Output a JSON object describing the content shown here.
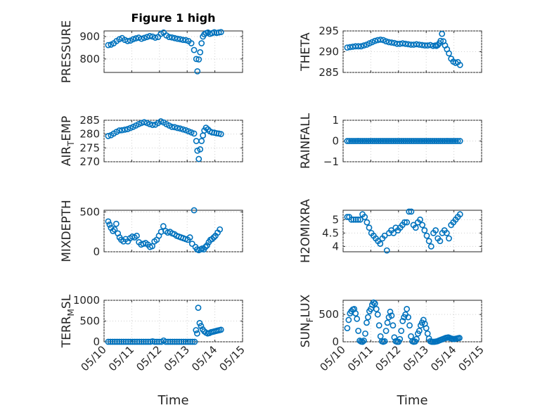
{
  "figure": {
    "title": "Figure 1 high",
    "marker_color": "#0072bd",
    "axis_color": "#262626"
  },
  "chart_data": [
    {
      "type": "scatter",
      "panel": "PRESSURE",
      "ylabel": "PRESSURE",
      "title": "Figure 1 high",
      "ylim": [
        740,
        925
      ],
      "yticks": [
        800,
        900
      ],
      "xlim": [
        0,
        5
      ],
      "xticks": [],
      "xticklabels": [],
      "xlabel": "",
      "grid": true,
      "x": [
        0.15,
        0.25,
        0.35,
        0.45,
        0.55,
        0.65,
        0.75,
        0.85,
        0.95,
        1.05,
        1.15,
        1.25,
        1.35,
        1.45,
        1.55,
        1.65,
        1.75,
        1.85,
        1.95,
        2.05,
        2.15,
        2.25,
        2.35,
        2.45,
        2.55,
        2.65,
        2.75,
        2.85,
        2.95,
        3.05,
        3.15,
        3.25,
        3.33,
        3.37,
        3.42,
        3.47,
        3.52,
        3.57,
        3.62,
        3.68,
        3.75,
        3.82,
        3.9,
        3.98,
        4.06,
        4.14,
        4.22
      ],
      "y": [
        862,
        864,
        870,
        880,
        888,
        893,
        885,
        880,
        882,
        888,
        892,
        895,
        890,
        894,
        898,
        902,
        900,
        895,
        898,
        912,
        918,
        905,
        898,
        896,
        893,
        890,
        888,
        885,
        884,
        880,
        870,
        840,
        800,
        745,
        798,
        830,
        870,
        900,
        910,
        915,
        918,
        912,
        915,
        919,
        916,
        918,
        920
      ]
    },
    {
      "type": "scatter",
      "panel": "THETA",
      "ylabel": "THETA",
      "ylim": [
        285,
        295
      ],
      "yticks": [
        285,
        290,
        295
      ],
      "xlim": [
        0,
        5
      ],
      "xticks": [],
      "xticklabels": [],
      "xlabel": "",
      "grid": true,
      "x": [
        0.15,
        0.25,
        0.35,
        0.45,
        0.55,
        0.65,
        0.75,
        0.85,
        0.95,
        1.05,
        1.15,
        1.25,
        1.35,
        1.45,
        1.55,
        1.65,
        1.75,
        1.85,
        1.95,
        2.05,
        2.15,
        2.25,
        2.35,
        2.45,
        2.55,
        2.65,
        2.75,
        2.85,
        2.95,
        3.05,
        3.15,
        3.25,
        3.33,
        3.37,
        3.42,
        3.47,
        3.52,
        3.57,
        3.62,
        3.68,
        3.75,
        3.82,
        3.9,
        3.98,
        4.06,
        4.14,
        4.22
      ],
      "y": [
        291,
        291.1,
        291.2,
        291.3,
        291.3,
        291.3,
        291.5,
        291.7,
        292,
        292.3,
        292.6,
        292.8,
        292.9,
        292.8,
        292.5,
        292.3,
        292.2,
        292.1,
        291.9,
        291.9,
        292,
        291.9,
        291.8,
        291.7,
        291.7,
        291.8,
        291.7,
        291.6,
        291.5,
        291.5,
        291.6,
        291.4,
        291.5,
        291.4,
        291.6,
        292.0,
        292.6,
        294.3,
        292.5,
        291.5,
        290.6,
        289.6,
        288.3,
        287.6,
        287.3,
        287.5,
        286.8
      ]
    },
    {
      "type": "scatter",
      "panel": "AIR_TEMP",
      "ylabel": "AIR",
      "ylabel_sub": "T",
      "ylabel_rest": "EMP",
      "ylim": [
        270,
        285
      ],
      "yticks": [
        270,
        275,
        280,
        285
      ],
      "xlim": [
        0,
        5
      ],
      "xticks": [],
      "xticklabels": [],
      "xlabel": "",
      "grid": true,
      "x": [
        0.15,
        0.25,
        0.35,
        0.45,
        0.55,
        0.65,
        0.75,
        0.85,
        0.95,
        1.05,
        1.15,
        1.25,
        1.35,
        1.45,
        1.55,
        1.65,
        1.75,
        1.85,
        1.95,
        2.05,
        2.15,
        2.25,
        2.35,
        2.45,
        2.55,
        2.65,
        2.75,
        2.85,
        2.95,
        3.05,
        3.15,
        3.25,
        3.33,
        3.37,
        3.42,
        3.47,
        3.52,
        3.57,
        3.62,
        3.68,
        3.75,
        3.82,
        3.9,
        3.98,
        4.06,
        4.14,
        4.22
      ],
      "y": [
        279.3,
        279.6,
        280.2,
        280.8,
        281.3,
        281.4,
        281.6,
        281.8,
        282.2,
        282.6,
        283.1,
        283.6,
        284.0,
        284.3,
        284.0,
        283.6,
        283.3,
        283.4,
        284.0,
        284.6,
        284.2,
        283.6,
        283.1,
        282.6,
        282.5,
        282.2,
        282.0,
        281.7,
        281.4,
        281.0,
        280.6,
        280.2,
        277.5,
        274,
        271,
        274.5,
        277.5,
        279.5,
        281.3,
        282.3,
        281.7,
        281.0,
        280.6,
        280.5,
        280.3,
        280.2,
        280.0
      ]
    },
    {
      "type": "scatter",
      "panel": "RAINFALL",
      "ylabel": "RAINFALL",
      "ylim": [
        -1,
        1
      ],
      "yticks": [
        -1,
        0,
        1
      ],
      "xlim": [
        0,
        5
      ],
      "xticks": [],
      "xticklabels": [],
      "xlabel": "",
      "grid": true,
      "x": [
        0.15,
        0.22,
        0.29,
        0.36,
        0.43,
        0.5,
        0.57,
        0.64,
        0.71,
        0.78,
        0.85,
        0.92,
        0.99,
        1.06,
        1.13,
        1.2,
        1.27,
        1.34,
        1.41,
        1.48,
        1.55,
        1.62,
        1.69,
        1.76,
        1.83,
        1.9,
        1.97,
        2.04,
        2.11,
        2.18,
        2.25,
        2.32,
        2.39,
        2.46,
        2.53,
        2.6,
        2.67,
        2.74,
        2.81,
        2.88,
        2.95,
        3.02,
        3.09,
        3.16,
        3.23,
        3.3,
        3.37,
        3.44,
        3.51,
        3.58,
        3.65,
        3.72,
        3.79,
        3.86,
        3.93,
        4.0,
        4.07,
        4.14,
        4.22
      ],
      "y": [
        0,
        0,
        0,
        0,
        0,
        0,
        0,
        0,
        0,
        0,
        0,
        0,
        0,
        0,
        0,
        0,
        0,
        0,
        0,
        0,
        0,
        0,
        0,
        0,
        0,
        0,
        0,
        0,
        0,
        0,
        0,
        0,
        0,
        0,
        0,
        0,
        0,
        0,
        0,
        0,
        0,
        0,
        0,
        0,
        0,
        0,
        0,
        0,
        0,
        0,
        0,
        0,
        0,
        0,
        0,
        0,
        0,
        0,
        0
      ]
    },
    {
      "type": "scatter",
      "panel": "MIXDEPTH",
      "ylabel": "MIXDEPTH",
      "ylim": [
        0,
        520
      ],
      "yticks": [
        0,
        500
      ],
      "xlim": [
        0,
        5
      ],
      "xticks": [],
      "xticklabels": [],
      "xlabel": "",
      "grid": true,
      "x": [
        0.15,
        0.2,
        0.25,
        0.32,
        0.38,
        0.44,
        0.5,
        0.56,
        0.62,
        0.7,
        0.78,
        0.86,
        0.94,
        1.02,
        1.1,
        1.18,
        1.26,
        1.34,
        1.42,
        1.5,
        1.58,
        1.66,
        1.74,
        1.82,
        1.9,
        1.98,
        2.06,
        2.14,
        2.22,
        2.3,
        2.38,
        2.46,
        2.54,
        2.62,
        2.7,
        2.78,
        2.86,
        2.94,
        3.02,
        3.1,
        3.18,
        3.25,
        3.3,
        3.36,
        3.42,
        3.48,
        3.54,
        3.6,
        3.66,
        3.72,
        3.78,
        3.84,
        3.9,
        3.96,
        4.02,
        4.1,
        4.18
      ],
      "y": [
        380,
        340,
        300,
        260,
        280,
        350,
        230,
        180,
        150,
        130,
        160,
        130,
        170,
        190,
        180,
        200,
        120,
        90,
        100,
        110,
        90,
        60,
        70,
        130,
        150,
        200,
        250,
        320,
        260,
        240,
        250,
        230,
        220,
        200,
        190,
        180,
        170,
        160,
        150,
        180,
        100,
        520,
        60,
        30,
        20,
        30,
        40,
        30,
        60,
        80,
        120,
        150,
        160,
        180,
        200,
        240,
        280
      ]
    },
    {
      "type": "scatter",
      "panel": "H2OMIXRA",
      "ylabel": "H2OMIXRA",
      "ylim": [
        3.8,
        5.35
      ],
      "yticks": [
        4,
        4.5,
        5
      ],
      "xlim": [
        0,
        5
      ],
      "xticks": [],
      "xticklabels": [],
      "xlabel": "",
      "grid": true,
      "x": [
        0.15,
        0.22,
        0.3,
        0.38,
        0.46,
        0.54,
        0.62,
        0.7,
        0.78,
        0.86,
        0.94,
        1.02,
        1.1,
        1.18,
        1.26,
        1.34,
        1.42,
        1.5,
        1.58,
        1.66,
        1.74,
        1.82,
        1.9,
        1.98,
        2.06,
        2.14,
        2.22,
        2.3,
        2.38,
        2.46,
        2.54,
        2.62,
        2.7,
        2.78,
        2.86,
        2.94,
        3.02,
        3.1,
        3.18,
        3.26,
        3.34,
        3.42,
        3.5,
        3.58,
        3.66,
        3.74,
        3.82,
        3.9,
        3.98,
        4.06,
        4.14,
        4.22
      ],
      "y": [
        5.1,
        5.1,
        5.0,
        5.0,
        5.0,
        5.0,
        5.0,
        5.2,
        5.1,
        4.9,
        4.7,
        4.5,
        4.4,
        4.3,
        4.2,
        4.1,
        4.3,
        4.4,
        3.85,
        4.5,
        4.6,
        4.5,
        4.7,
        4.6,
        4.7,
        4.8,
        4.9,
        4.9,
        5.3,
        5.3,
        4.8,
        4.7,
        4.9,
        5.0,
        4.8,
        4.6,
        4.4,
        4.2,
        4.0,
        4.5,
        4.6,
        4.3,
        4.2,
        4.5,
        4.6,
        4.5,
        4.3,
        4.8,
        4.9,
        5.0,
        5.1,
        5.2
      ]
    },
    {
      "type": "scatter",
      "panel": "TERR_MSL",
      "ylabel": "TERR",
      "ylabel_sub": "M",
      "ylabel_rest": "SL",
      "ylim": [
        0,
        1000
      ],
      "yticks": [
        0,
        500,
        1000
      ],
      "xlim": [
        0,
        5
      ],
      "xticks": [
        0,
        1,
        2,
        3,
        4,
        5
      ],
      "xticklabels": [
        "05/10",
        "05/11",
        "05/12",
        "05/13",
        "05/14",
        "05/15"
      ],
      "xlabel": "Time",
      "grid": true,
      "x": [
        0.15,
        0.23,
        0.31,
        0.39,
        0.47,
        0.55,
        0.63,
        0.71,
        0.79,
        0.87,
        0.95,
        1.03,
        1.11,
        1.19,
        1.27,
        1.35,
        1.43,
        1.51,
        1.59,
        1.67,
        1.75,
        1.83,
        1.91,
        1.99,
        2.07,
        2.15,
        2.23,
        2.31,
        2.39,
        2.47,
        2.55,
        2.63,
        2.71,
        2.79,
        2.87,
        2.95,
        3.03,
        3.11,
        3.19,
        3.27,
        3.32,
        3.36,
        3.4,
        3.45,
        3.5,
        3.56,
        3.62,
        3.68,
        3.74,
        3.8,
        3.86,
        3.92,
        3.98,
        4.04,
        4.1,
        4.16,
        4.22
      ],
      "y": [
        0,
        0,
        0,
        0,
        0,
        0,
        0,
        0,
        0,
        0,
        0,
        0,
        0,
        0,
        0,
        0,
        0,
        0,
        0,
        0,
        10,
        0,
        0,
        0,
        0,
        30,
        0,
        0,
        0,
        0,
        0,
        0,
        0,
        0,
        0,
        0,
        0,
        0,
        0,
        0,
        280,
        200,
        820,
        450,
        380,
        300,
        250,
        220,
        200,
        210,
        230,
        240,
        250,
        260,
        270,
        280,
        290
      ]
    },
    {
      "type": "scatter",
      "panel": "SUN_FLUX",
      "ylabel": "SUN",
      "ylabel_sub": "F",
      "ylabel_rest": "LUX",
      "ylim": [
        0,
        760
      ],
      "yticks": [
        0,
        500
      ],
      "xlim": [
        0,
        5
      ],
      "xticks": [
        0,
        1,
        2,
        3,
        4,
        5
      ],
      "xticklabels": [
        "05/10",
        "05/11",
        "05/12",
        "05/13",
        "05/14",
        "05/15"
      ],
      "xlabel": "Time",
      "grid": true,
      "x": [
        0.15,
        0.2,
        0.25,
        0.3,
        0.35,
        0.4,
        0.45,
        0.5,
        0.55,
        0.6,
        0.65,
        0.7,
        0.75,
        0.8,
        0.85,
        0.9,
        0.95,
        1.0,
        1.05,
        1.1,
        1.15,
        1.2,
        1.25,
        1.3,
        1.35,
        1.4,
        1.45,
        1.5,
        1.55,
        1.6,
        1.65,
        1.7,
        1.75,
        1.8,
        1.85,
        1.9,
        1.95,
        2.0,
        2.05,
        2.1,
        2.15,
        2.2,
        2.25,
        2.3,
        2.35,
        2.4,
        2.45,
        2.5,
        2.55,
        2.6,
        2.65,
        2.7,
        2.75,
        2.8,
        2.85,
        2.9,
        2.95,
        3.0,
        3.05,
        3.1,
        3.15,
        3.2,
        3.25,
        3.3,
        3.35,
        3.4,
        3.45,
        3.5,
        3.55,
        3.6,
        3.65,
        3.7,
        3.75,
        3.8,
        3.85,
        3.9,
        3.95,
        4.0,
        4.05,
        4.1,
        4.15,
        4.2
      ],
      "y": [
        250,
        400,
        520,
        560,
        590,
        600,
        520,
        420,
        200,
        20,
        5,
        0,
        20,
        150,
        350,
        450,
        560,
        600,
        680,
        720,
        700,
        600,
        500,
        300,
        100,
        10,
        0,
        10,
        200,
        350,
        450,
        550,
        480,
        300,
        80,
        10,
        0,
        0,
        50,
        200,
        380,
        450,
        500,
        600,
        450,
        300,
        100,
        10,
        0,
        5,
        50,
        150,
        200,
        300,
        350,
        400,
        330,
        250,
        150,
        60,
        10,
        0,
        0,
        0,
        5,
        10,
        20,
        30,
        40,
        50,
        60,
        70,
        75,
        80,
        70,
        60,
        55,
        50,
        55,
        60,
        65,
        70
      ]
    }
  ]
}
